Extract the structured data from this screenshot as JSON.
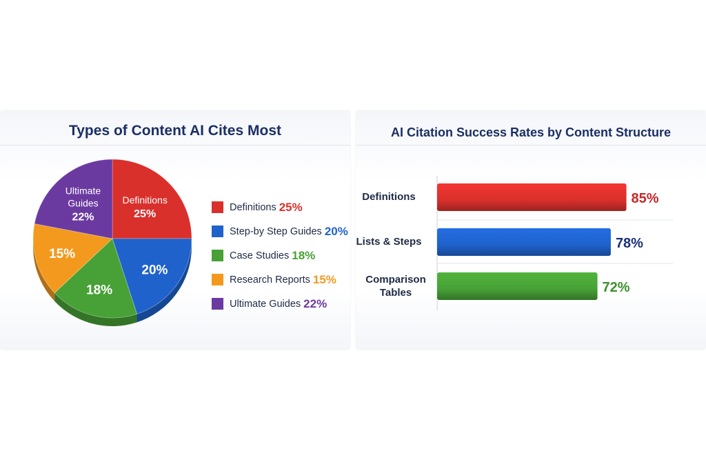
{
  "chart_data": [
    {
      "type": "pie",
      "title": "Types of Content AI Cites Most",
      "slices": [
        {
          "label": "Definitions",
          "value": 25,
          "value_label": "25%",
          "color": "#d9302c",
          "inner_label": "Definitions"
        },
        {
          "label": "Step-by Step Guides",
          "value": 20,
          "value_label": "20%",
          "color": "#1f62cc",
          "inner_label": ""
        },
        {
          "label": "Case Studies",
          "value": 18,
          "value_label": "18%",
          "color": "#47a136",
          "inner_label": ""
        },
        {
          "label": "Research Reports",
          "value": 15,
          "value_label": "15%",
          "color": "#f39a1e",
          "inner_label": ""
        },
        {
          "label": "Ultimate Guides",
          "value": 22,
          "value_label": "22%",
          "color": "#6b3aa0",
          "inner_label": "Ultimate Guides"
        }
      ],
      "legend_position": "right"
    },
    {
      "type": "bar",
      "orientation": "horizontal",
      "title": "AI Citation Success Rates by Content Structure",
      "categories": [
        "Definitions",
        "Lists & Steps",
        "Comparison Tables"
      ],
      "values": [
        85,
        78,
        72
      ],
      "value_labels": [
        "85%",
        "78%",
        "72%"
      ],
      "colors": [
        "#d9302c",
        "#1f62cc",
        "#47a136"
      ],
      "label_colors": [
        "#c8262a",
        "#1b2f7a",
        "#3c8f2c"
      ],
      "xlim": [
        0,
        100
      ],
      "grid": true
    }
  ]
}
